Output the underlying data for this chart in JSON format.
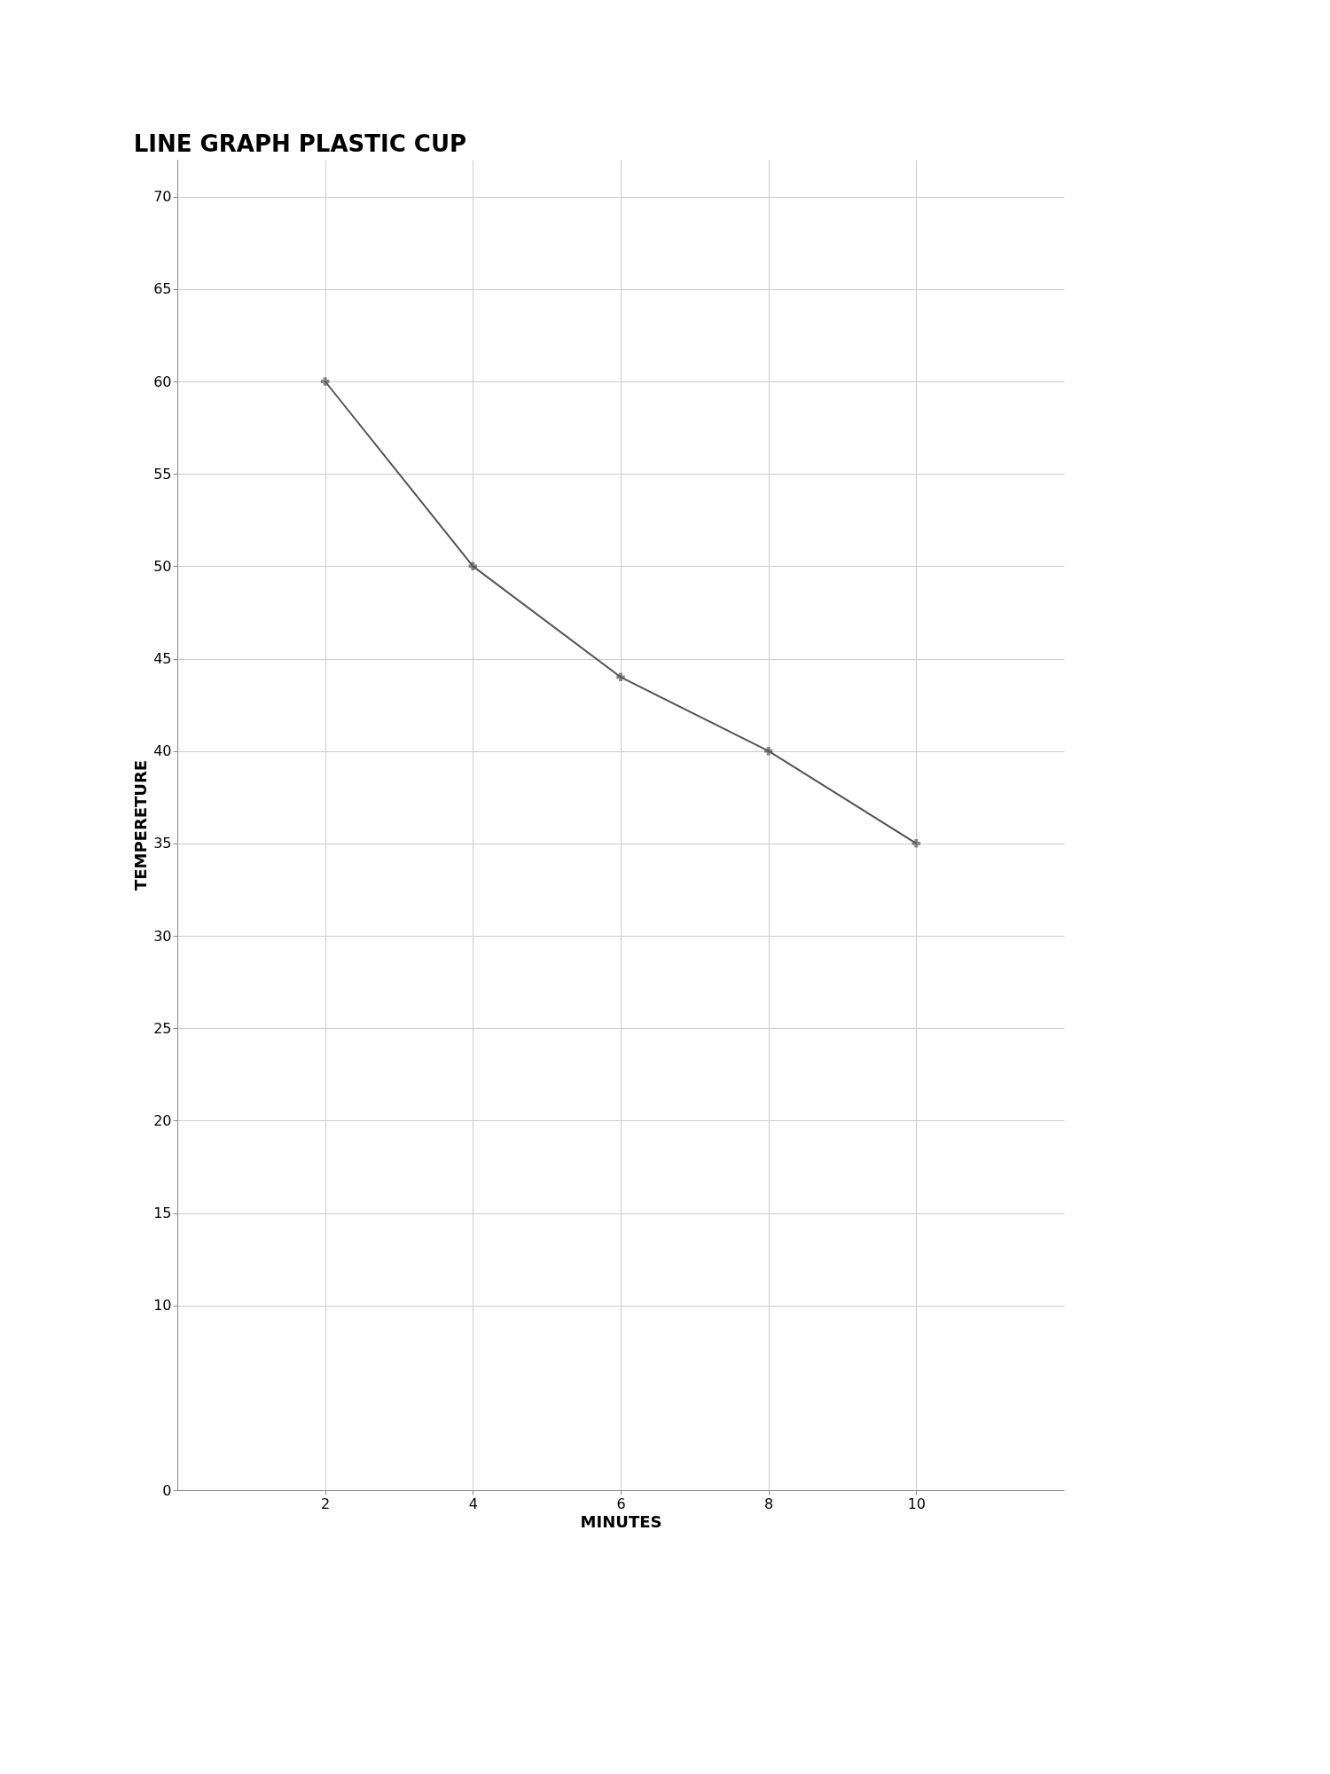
{
  "chart_data": {
    "type": "line",
    "title": "LINE GRAPH PLASTIC CUP",
    "xlabel": "MINUTES",
    "ylabel": "TEMPERETURE",
    "x": [
      2,
      4,
      6,
      8,
      10
    ],
    "series": [
      {
        "color": "#555555",
        "values": [
          60,
          50,
          44,
          40,
          35
        ]
      }
    ],
    "xlim": [
      0,
      12
    ],
    "xticks": [
      2,
      4,
      6,
      8,
      10
    ],
    "ylim": [
      0,
      72
    ],
    "yticks": [
      0,
      10,
      15,
      20,
      25,
      30,
      35,
      40,
      45,
      50,
      55,
      60,
      65,
      70
    ],
    "grid": true,
    "marker": "cross",
    "line_style": "solid"
  }
}
